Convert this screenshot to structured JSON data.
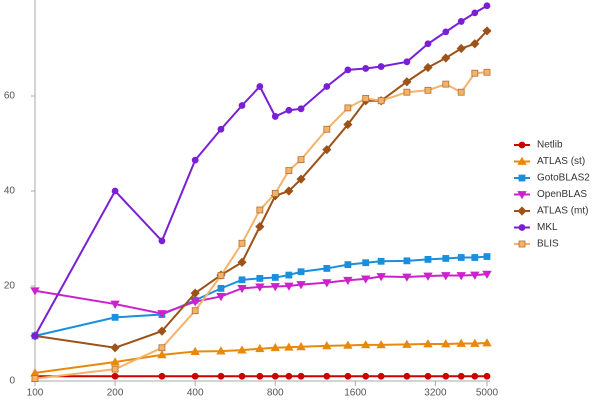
{
  "chart_data": {
    "type": "line",
    "x_scale": "log",
    "legend": "right",
    "grid": false,
    "x": [
      100,
      200,
      300,
      400,
      500,
      600,
      700,
      800,
      900,
      1000,
      1250,
      1500,
      1750,
      2000,
      2500,
      3000,
      3500,
      4000,
      4500,
      5000
    ],
    "xlim": [
      100,
      5000
    ],
    "xticks": [
      100,
      200,
      400,
      800,
      1600,
      3200,
      5000
    ],
    "ylim": [
      0,
      80
    ],
    "yticks": [
      0,
      20,
      40,
      60
    ],
    "series": [
      {
        "name": "Netlib",
        "color": "#cc0000",
        "marker": "circle",
        "values": [
          1,
          1,
          1,
          1,
          1,
          1,
          1,
          1,
          1,
          1,
          1,
          1,
          1,
          1,
          1,
          1,
          1,
          1,
          1,
          1
        ]
      },
      {
        "name": "ATLAS (st)",
        "color": "#e8890c",
        "marker": "triangle",
        "values": [
          1.7,
          4,
          5.5,
          6.2,
          6.3,
          6.5,
          6.8,
          7,
          7.1,
          7.2,
          7.4,
          7.5,
          7.6,
          7.6,
          7.7,
          7.8,
          7.8,
          7.9,
          7.9,
          8
        ]
      },
      {
        "name": "GotoBLAS2",
        "color": "#1a8fdd",
        "marker": "square",
        "values": [
          9.5,
          13.4,
          14,
          17,
          19.5,
          21.3,
          21.6,
          21.8,
          22.3,
          23,
          23.7,
          24.5,
          24.9,
          25.2,
          25.3,
          25.6,
          25.8,
          26,
          26,
          26.2
        ]
      },
      {
        "name": "OpenBLAS",
        "color": "#cc22cc",
        "marker": "triangle-down",
        "values": [
          19,
          16.2,
          14.2,
          16.7,
          17.8,
          19.5,
          19.8,
          19.9,
          20,
          20.3,
          20.7,
          21.2,
          21.5,
          22,
          21.9,
          22.1,
          22.2,
          22.2,
          22.3,
          22.5
        ]
      },
      {
        "name": "ATLAS (mt)",
        "color": "#9c5218",
        "marker": "diamond",
        "values": [
          9.5,
          7,
          10.5,
          18.5,
          22.3,
          25,
          32.5,
          39,
          40,
          42.5,
          48.7,
          54,
          59,
          59,
          63,
          66,
          68,
          70,
          71,
          73.7
        ]
      },
      {
        "name": "MKL",
        "color": "#7a1fd6",
        "marker": "circle",
        "values": [
          9.5,
          40,
          29.5,
          46.5,
          53,
          58,
          62,
          55.7,
          57,
          57.3,
          62,
          65.5,
          65.8,
          66.2,
          67.2,
          71,
          73.5,
          75.7,
          77.5,
          79
        ]
      },
      {
        "name": "BLIS",
        "color": "#f5b26b",
        "marker": "square",
        "values": [
          0.5,
          2.5,
          7,
          14.8,
          22.2,
          29,
          36,
          39.5,
          44.3,
          46.6,
          53,
          57.5,
          59.5,
          59,
          60.8,
          61.2,
          62.5,
          60.8,
          64.8,
          65
        ]
      }
    ]
  }
}
